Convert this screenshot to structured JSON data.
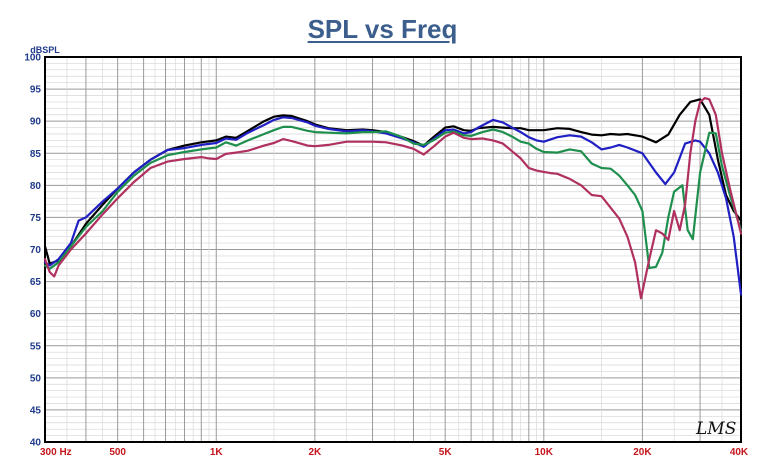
{
  "chart_data": {
    "type": "line",
    "title": "SPL vs Freq",
    "ylabel": "dBSPL",
    "xscale": "log",
    "xlim": [
      300,
      40000
    ],
    "ylim": [
      40,
      100
    ],
    "grid": true,
    "legend": "none",
    "watermark": "LMS",
    "yticks": [
      "40",
      "45",
      "50",
      "55",
      "60",
      "65",
      "70",
      "75",
      "80",
      "85",
      "90",
      "95",
      "100"
    ],
    "xticks": [
      {
        "v": 300,
        "label": "300 Hz"
      },
      {
        "v": 500,
        "label": "500"
      },
      {
        "v": 1000,
        "label": "1K"
      },
      {
        "v": 2000,
        "label": "2K"
      },
      {
        "v": 5000,
        "label": "5K"
      },
      {
        "v": 10000,
        "label": "10K"
      },
      {
        "v": 20000,
        "label": "20K"
      },
      {
        "v": 40000,
        "label": "40K"
      }
    ],
    "series": [
      {
        "color": "#000000",
        "points": [
          [
            300,
            70.5
          ],
          [
            310,
            67.8
          ],
          [
            330,
            68.3
          ],
          [
            360,
            70.5
          ],
          [
            400,
            74
          ],
          [
            450,
            77
          ],
          [
            500,
            79.5
          ],
          [
            560,
            82
          ],
          [
            630,
            84
          ],
          [
            710,
            85.5
          ],
          [
            800,
            86.2
          ],
          [
            900,
            86.7
          ],
          [
            1000,
            87
          ],
          [
            1070,
            87.6
          ],
          [
            1150,
            87.4
          ],
          [
            1250,
            88.5
          ],
          [
            1400,
            90
          ],
          [
            1500,
            90.7
          ],
          [
            1600,
            90.9
          ],
          [
            1700,
            90.8
          ],
          [
            1900,
            90
          ],
          [
            2000,
            89.5
          ],
          [
            2200,
            88.9
          ],
          [
            2500,
            88.6
          ],
          [
            2800,
            88.7
          ],
          [
            3000,
            88.6
          ],
          [
            3300,
            88.3
          ],
          [
            3700,
            87.5
          ],
          [
            4000,
            86.9
          ],
          [
            4300,
            86.2
          ],
          [
            4600,
            87.5
          ],
          [
            5000,
            89
          ],
          [
            5300,
            89.2
          ],
          [
            5700,
            88.6
          ],
          [
            6000,
            88.5
          ],
          [
            6300,
            88.9
          ],
          [
            7000,
            89.1
          ],
          [
            7500,
            89
          ],
          [
            8000,
            88.9
          ],
          [
            8500,
            88.9
          ],
          [
            9000,
            88.6
          ],
          [
            10000,
            88.6
          ],
          [
            11000,
            88.9
          ],
          [
            12000,
            88.8
          ],
          [
            13000,
            88.3
          ],
          [
            14000,
            87.9
          ],
          [
            15000,
            87.8
          ],
          [
            16000,
            88
          ],
          [
            17000,
            87.9
          ],
          [
            18000,
            88
          ],
          [
            20000,
            87.6
          ],
          [
            22000,
            86.7
          ],
          [
            24000,
            87.9
          ],
          [
            26000,
            91
          ],
          [
            28000,
            93
          ],
          [
            30000,
            93.4
          ],
          [
            32000,
            91
          ],
          [
            34000,
            84
          ],
          [
            36000,
            78.5
          ],
          [
            38000,
            76
          ],
          [
            40000,
            74.5
          ]
        ]
      },
      {
        "color": "#1f1fc4",
        "points": [
          [
            300,
            68
          ],
          [
            310,
            67.5
          ],
          [
            330,
            68.5
          ],
          [
            360,
            71
          ],
          [
            380,
            74.5
          ],
          [
            400,
            75
          ],
          [
            450,
            77.5
          ],
          [
            500,
            79.5
          ],
          [
            560,
            82
          ],
          [
            630,
            84
          ],
          [
            710,
            85.5
          ],
          [
            800,
            85.8
          ],
          [
            900,
            86.3
          ],
          [
            1000,
            86.6
          ],
          [
            1070,
            87.3
          ],
          [
            1150,
            87.1
          ],
          [
            1250,
            88.2
          ],
          [
            1400,
            89.4
          ],
          [
            1500,
            90.2
          ],
          [
            1600,
            90.6
          ],
          [
            1700,
            90.5
          ],
          [
            1900,
            89.8
          ],
          [
            2000,
            89.3
          ],
          [
            2200,
            88.8
          ],
          [
            2500,
            88.4
          ],
          [
            2800,
            88.6
          ],
          [
            3000,
            88.4
          ],
          [
            3300,
            88.1
          ],
          [
            3700,
            87.3
          ],
          [
            4000,
            86.7
          ],
          [
            4300,
            86
          ],
          [
            4600,
            87.2
          ],
          [
            5000,
            88.6
          ],
          [
            5300,
            88.7
          ],
          [
            5700,
            88.1
          ],
          [
            6000,
            88.3
          ],
          [
            6300,
            89
          ],
          [
            7000,
            90.2
          ],
          [
            7500,
            89.8
          ],
          [
            8000,
            89
          ],
          [
            8500,
            88.3
          ],
          [
            9000,
            87.5
          ],
          [
            9500,
            87
          ],
          [
            10000,
            86.8
          ],
          [
            11000,
            87.5
          ],
          [
            12000,
            87.8
          ],
          [
            13000,
            87.6
          ],
          [
            14000,
            86.7
          ],
          [
            15000,
            85.6
          ],
          [
            16000,
            85.9
          ],
          [
            17000,
            86.3
          ],
          [
            18000,
            85.9
          ],
          [
            20000,
            85
          ],
          [
            22000,
            82
          ],
          [
            23500,
            80.2
          ],
          [
            25000,
            82
          ],
          [
            27000,
            86.5
          ],
          [
            29000,
            87
          ],
          [
            30000,
            86.8
          ],
          [
            32000,
            85
          ],
          [
            34000,
            82
          ],
          [
            36000,
            78
          ],
          [
            38000,
            72
          ],
          [
            40000,
            63
          ]
        ]
      },
      {
        "color": "#1f8f4e",
        "points": [
          [
            300,
            67.5
          ],
          [
            310,
            67
          ],
          [
            330,
            68
          ],
          [
            360,
            70.5
          ],
          [
            400,
            73.5
          ],
          [
            450,
            76
          ],
          [
            500,
            79
          ],
          [
            560,
            81.5
          ],
          [
            630,
            83.5
          ],
          [
            710,
            84.7
          ],
          [
            800,
            85.2
          ],
          [
            900,
            85.6
          ],
          [
            1000,
            85.9
          ],
          [
            1070,
            86.7
          ],
          [
            1150,
            86.2
          ],
          [
            1250,
            87
          ],
          [
            1400,
            88
          ],
          [
            1500,
            88.6
          ],
          [
            1600,
            89.1
          ],
          [
            1700,
            89.1
          ],
          [
            1900,
            88.5
          ],
          [
            2000,
            88.3
          ],
          [
            2200,
            88.2
          ],
          [
            2500,
            88.1
          ],
          [
            2800,
            88.3
          ],
          [
            3000,
            88.3
          ],
          [
            3300,
            88.4
          ],
          [
            3700,
            87.5
          ],
          [
            4000,
            86.5
          ],
          [
            4300,
            86.3
          ],
          [
            4600,
            87
          ],
          [
            5000,
            88.2
          ],
          [
            5300,
            88.4
          ],
          [
            5700,
            87.8
          ],
          [
            6000,
            87.7
          ],
          [
            6500,
            88.3
          ],
          [
            7000,
            88.7
          ],
          [
            7500,
            88.3
          ],
          [
            8000,
            87.6
          ],
          [
            8500,
            86.8
          ],
          [
            9000,
            86.5
          ],
          [
            9500,
            85.7
          ],
          [
            10000,
            85.2
          ],
          [
            11000,
            85.1
          ],
          [
            12000,
            85.6
          ],
          [
            13000,
            85.3
          ],
          [
            14000,
            83.4
          ],
          [
            15000,
            82.7
          ],
          [
            16000,
            82.6
          ],
          [
            17000,
            81.5
          ],
          [
            18000,
            80
          ],
          [
            19000,
            78.5
          ],
          [
            20000,
            76
          ],
          [
            21000,
            67.1
          ],
          [
            22000,
            67.3
          ],
          [
            23000,
            69.5
          ],
          [
            24000,
            75
          ],
          [
            25000,
            79
          ],
          [
            26500,
            80
          ],
          [
            27500,
            73
          ],
          [
            28500,
            71.6
          ],
          [
            30000,
            82
          ],
          [
            32000,
            88.2
          ],
          [
            33500,
            88.1
          ],
          [
            35000,
            83
          ],
          [
            37000,
            78.5
          ],
          [
            40000,
            73
          ]
        ]
      },
      {
        "color": "#b03060",
        "points": [
          [
            300,
            68.5
          ],
          [
            310,
            66.5
          ],
          [
            320,
            65.8
          ],
          [
            330,
            67.5
          ],
          [
            360,
            70
          ],
          [
            400,
            72.5
          ],
          [
            450,
            75.5
          ],
          [
            500,
            78
          ],
          [
            560,
            80.5
          ],
          [
            630,
            82.7
          ],
          [
            710,
            83.7
          ],
          [
            800,
            84.1
          ],
          [
            900,
            84.4
          ],
          [
            950,
            84.2
          ],
          [
            1000,
            84.1
          ],
          [
            1070,
            84.9
          ],
          [
            1150,
            85.1
          ],
          [
            1250,
            85.4
          ],
          [
            1400,
            86.2
          ],
          [
            1500,
            86.6
          ],
          [
            1600,
            87.2
          ],
          [
            1700,
            86.9
          ],
          [
            1900,
            86.2
          ],
          [
            2000,
            86.1
          ],
          [
            2200,
            86.3
          ],
          [
            2500,
            86.8
          ],
          [
            2800,
            86.8
          ],
          [
            3000,
            86.8
          ],
          [
            3300,
            86.7
          ],
          [
            3700,
            86.2
          ],
          [
            4000,
            85.7
          ],
          [
            4300,
            84.8
          ],
          [
            4600,
            86
          ],
          [
            5000,
            87.6
          ],
          [
            5300,
            88.2
          ],
          [
            5700,
            87.4
          ],
          [
            6000,
            87.2
          ],
          [
            6500,
            87.3
          ],
          [
            7000,
            87
          ],
          [
            7500,
            86.5
          ],
          [
            8000,
            85.3
          ],
          [
            8500,
            84.2
          ],
          [
            9000,
            82.7
          ],
          [
            9500,
            82.3
          ],
          [
            10000,
            82.1
          ],
          [
            10500,
            81.9
          ],
          [
            11000,
            81.8
          ],
          [
            12000,
            81
          ],
          [
            13000,
            80
          ],
          [
            14000,
            78.5
          ],
          [
            15000,
            78.3
          ],
          [
            16000,
            76.5
          ],
          [
            17000,
            74.8
          ],
          [
            18000,
            72
          ],
          [
            19000,
            68
          ],
          [
            19800,
            62.4
          ],
          [
            21000,
            68.5
          ],
          [
            22000,
            73
          ],
          [
            23000,
            72.5
          ],
          [
            24000,
            71.5
          ],
          [
            25000,
            76
          ],
          [
            26000,
            73
          ],
          [
            27000,
            77
          ],
          [
            28000,
            85
          ],
          [
            29000,
            90
          ],
          [
            30000,
            93
          ],
          [
            31000,
            93.6
          ],
          [
            32000,
            93.4
          ],
          [
            33500,
            91
          ],
          [
            35000,
            85
          ],
          [
            37000,
            79.5
          ],
          [
            40000,
            72.5
          ]
        ]
      }
    ]
  }
}
